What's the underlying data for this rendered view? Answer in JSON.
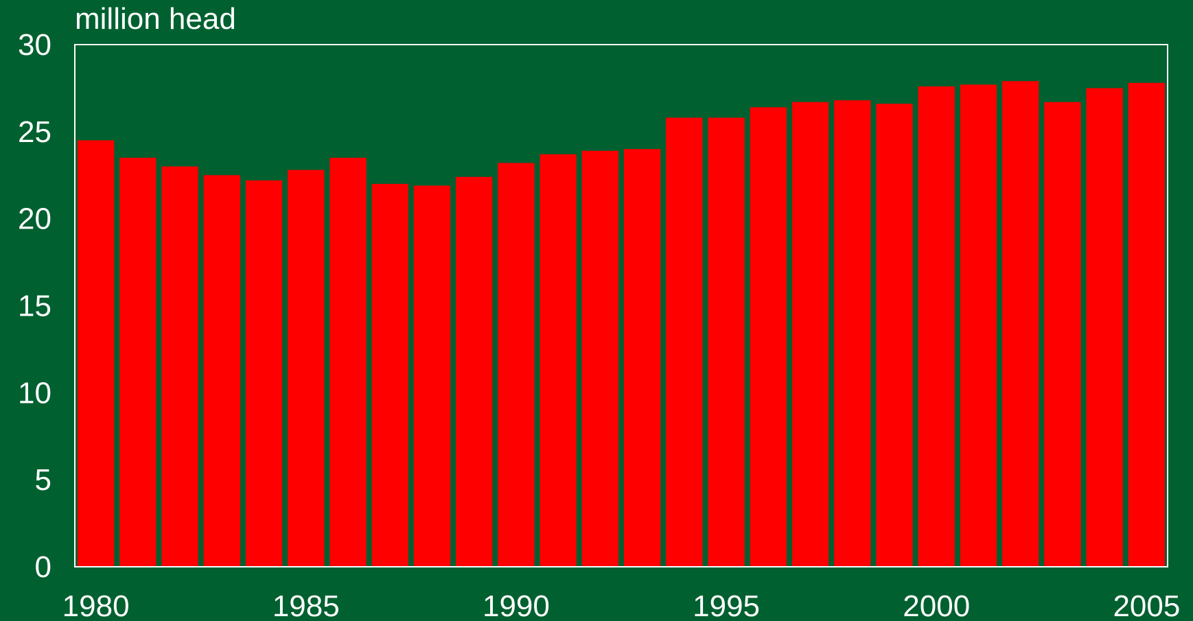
{
  "chart_data": {
    "type": "bar",
    "y_axis_label": "million head",
    "categories": [
      "1980",
      null,
      null,
      null,
      null,
      "1985",
      null,
      null,
      null,
      null,
      "1990",
      null,
      null,
      null,
      null,
      "1995",
      null,
      null,
      null,
      null,
      "2000",
      null,
      null,
      null,
      null,
      "2005"
    ],
    "values": [
      24.5,
      23.5,
      23.0,
      22.5,
      22.2,
      22.8,
      23.5,
      22.0,
      21.9,
      22.4,
      23.2,
      23.7,
      23.9,
      24.0,
      25.8,
      25.8,
      26.4,
      26.7,
      26.8,
      26.6,
      27.6,
      27.7,
      27.9,
      26.7,
      27.5,
      27.8
    ],
    "color": "#ff0000",
    "ylim": [
      0,
      30
    ],
    "yticks": [
      0,
      5,
      10,
      15,
      20,
      25,
      30
    ],
    "grid": false
  }
}
